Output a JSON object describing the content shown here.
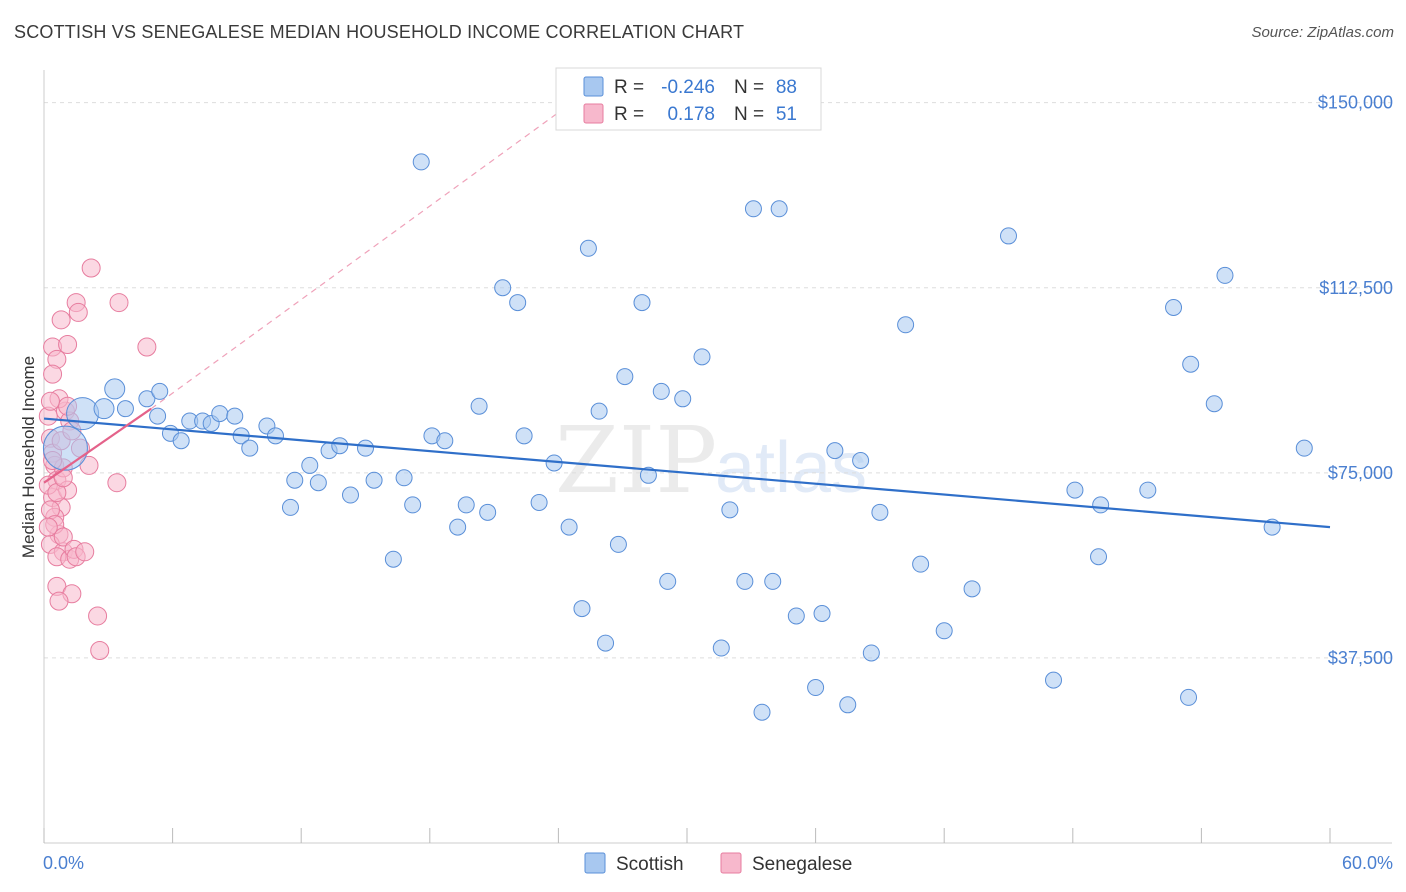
{
  "title": "SCOTTISH VS SENEGALESE MEDIAN HOUSEHOLD INCOME CORRELATION CHART",
  "source": "Source: ZipAtlas.com",
  "colors": {
    "scottish_fill": "#a8c8f0",
    "scottish_stroke": "#5a8fd8",
    "scottish_line": "#2f6fc9",
    "senegalese_fill": "#f7b8cc",
    "senegalese_stroke": "#e77d9f",
    "senegalese_line": "#e4628a",
    "axis_text": "#4a7fd0",
    "grid": "#dddddd"
  },
  "legend": {
    "row1": {
      "r_label": "R =",
      "r_value": "-0.246",
      "n_label": "N =",
      "n_value": "88"
    },
    "row2": {
      "r_label": "R =",
      "r_value": "0.178",
      "n_label": "N =",
      "n_value": "51"
    }
  },
  "bottom_legend": {
    "series1": "Scottish",
    "series2": "Senegalese"
  },
  "watermark": {
    "zip": "ZIP",
    "atlas": "atlas"
  },
  "chart_data": {
    "type": "scatter",
    "title": "SCOTTISH VS SENEGALESE MEDIAN HOUSEHOLD INCOME CORRELATION CHART",
    "xlabel": "",
    "ylabel": "Median Household Income",
    "xlim": [
      0,
      60
    ],
    "ylim": [
      0,
      155000
    ],
    "x_tick_labels": [
      "0.0%",
      "60.0%"
    ],
    "y_ticks": [
      37500,
      75000,
      112500,
      150000
    ],
    "y_tick_labels": [
      "$37,500",
      "$75,000",
      "$112,500",
      "$150,000"
    ],
    "legend_position": "top-center",
    "series": [
      {
        "name": "Scottish",
        "r": -0.246,
        "n": 88,
        "trend": {
          "x": [
            0,
            60
          ],
          "y": [
            86000,
            64000
          ]
        },
        "points": [
          [
            1.0,
            80000,
            22
          ],
          [
            1.8,
            87000,
            16
          ],
          [
            3.3,
            92000,
            10
          ],
          [
            2.8,
            88000,
            10
          ],
          [
            3.8,
            88000,
            8
          ],
          [
            4.8,
            90000,
            8
          ],
          [
            5.4,
            91500,
            8
          ],
          [
            5.3,
            86500,
            8
          ],
          [
            5.9,
            83000,
            8
          ],
          [
            6.4,
            81500,
            8
          ],
          [
            6.8,
            85500,
            8
          ],
          [
            7.4,
            85500,
            8
          ],
          [
            7.8,
            85000,
            8
          ],
          [
            8.2,
            87000,
            8
          ],
          [
            8.9,
            86500,
            8
          ],
          [
            9.2,
            82500,
            8
          ],
          [
            9.6,
            80000,
            8
          ],
          [
            10.4,
            84500,
            8
          ],
          [
            10.8,
            82500,
            8
          ],
          [
            11.5,
            68000,
            8
          ],
          [
            11.7,
            73500,
            8
          ],
          [
            12.4,
            76500,
            8
          ],
          [
            12.8,
            73000,
            8
          ],
          [
            13.3,
            79500,
            8
          ],
          [
            13.8,
            80500,
            8
          ],
          [
            14.3,
            70500,
            8
          ],
          [
            15.0,
            80000,
            8
          ],
          [
            15.4,
            73500,
            8
          ],
          [
            16.3,
            57500,
            8
          ],
          [
            16.8,
            74000,
            8
          ],
          [
            17.2,
            68500,
            8
          ],
          [
            17.6,
            138000,
            8
          ],
          [
            18.1,
            82500,
            8
          ],
          [
            18.7,
            81500,
            8
          ],
          [
            19.3,
            64000,
            8
          ],
          [
            19.7,
            68500,
            8
          ],
          [
            20.3,
            88500,
            8
          ],
          [
            20.7,
            67000,
            8
          ],
          [
            21.4,
            112500,
            8
          ],
          [
            22.1,
            109500,
            8
          ],
          [
            22.4,
            82500,
            8
          ],
          [
            23.1,
            69000,
            8
          ],
          [
            23.8,
            77000,
            8
          ],
          [
            24.5,
            64000,
            8
          ],
          [
            25.1,
            47500,
            8
          ],
          [
            25.4,
            120500,
            8
          ],
          [
            25.9,
            87500,
            8
          ],
          [
            26.2,
            40500,
            8
          ],
          [
            26.8,
            60500,
            8
          ],
          [
            27.1,
            94500,
            8
          ],
          [
            27.9,
            109500,
            8
          ],
          [
            28.2,
            74500,
            8
          ],
          [
            28.8,
            91500,
            8
          ],
          [
            29.1,
            53000,
            8
          ],
          [
            29.8,
            90000,
            8
          ],
          [
            30.7,
            98500,
            8
          ],
          [
            31.6,
            39500,
            8
          ],
          [
            32.0,
            67500,
            8
          ],
          [
            32.7,
            53000,
            8
          ],
          [
            33.1,
            128500,
            8
          ],
          [
            33.5,
            26500,
            8
          ],
          [
            34.0,
            53000,
            8
          ],
          [
            34.3,
            128500,
            8
          ],
          [
            35.1,
            46000,
            8
          ],
          [
            36.0,
            31500,
            8
          ],
          [
            36.3,
            46500,
            8
          ],
          [
            36.9,
            79500,
            8
          ],
          [
            37.5,
            28000,
            8
          ],
          [
            38.1,
            77500,
            8
          ],
          [
            38.6,
            38500,
            8
          ],
          [
            39.0,
            67000,
            8
          ],
          [
            40.2,
            105000,
            8
          ],
          [
            40.9,
            56500,
            8
          ],
          [
            42.0,
            43000,
            8
          ],
          [
            43.3,
            51500,
            8
          ],
          [
            45.0,
            123000,
            8
          ],
          [
            47.1,
            33000,
            8
          ],
          [
            48.1,
            71500,
            8
          ],
          [
            49.2,
            58000,
            8
          ],
          [
            49.3,
            68500,
            8
          ],
          [
            51.5,
            71500,
            8
          ],
          [
            52.7,
            108500,
            8
          ],
          [
            53.4,
            29500,
            8
          ],
          [
            53.5,
            97000,
            8
          ],
          [
            54.6,
            89000,
            8
          ],
          [
            55.1,
            115000,
            8
          ],
          [
            57.3,
            64000,
            8
          ],
          [
            58.8,
            80000,
            8
          ]
        ]
      },
      {
        "name": "Senegalese",
        "r": 0.178,
        "n": 51,
        "trend": {
          "x": [
            0,
            5
          ],
          "y": [
            73000,
            88000
          ]
        },
        "trend_extension": {
          "x": [
            5,
            24
          ],
          "y": [
            88000,
            148000
          ]
        },
        "points": [
          [
            0.2,
            86500,
            9
          ],
          [
            0.3,
            82000,
            9
          ],
          [
            0.4,
            79000,
            9
          ],
          [
            0.5,
            76500,
            9
          ],
          [
            0.6,
            73500,
            9
          ],
          [
            0.4,
            70000,
            9
          ],
          [
            0.8,
            68000,
            9
          ],
          [
            0.2,
            72500,
            9
          ],
          [
            0.5,
            66000,
            9
          ],
          [
            0.7,
            62500,
            9
          ],
          [
            0.3,
            60500,
            9
          ],
          [
            0.9,
            59000,
            9
          ],
          [
            0.6,
            58000,
            9
          ],
          [
            0.8,
            81500,
            9
          ],
          [
            1.0,
            87500,
            9
          ],
          [
            1.2,
            85500,
            9
          ],
          [
            0.7,
            90000,
            9
          ],
          [
            1.1,
            88500,
            9
          ],
          [
            1.3,
            83500,
            9
          ],
          [
            0.9,
            76000,
            9
          ],
          [
            1.1,
            71500,
            9
          ],
          [
            0.6,
            71000,
            9
          ],
          [
            0.4,
            77500,
            9
          ],
          [
            0.3,
            67500,
            9
          ],
          [
            0.5,
            64500,
            9
          ],
          [
            0.9,
            62000,
            9
          ],
          [
            1.2,
            57500,
            9
          ],
          [
            1.4,
            59500,
            9
          ],
          [
            1.5,
            58000,
            9
          ],
          [
            0.6,
            52000,
            9
          ],
          [
            1.3,
            50500,
            9
          ],
          [
            0.7,
            49000,
            9
          ],
          [
            2.5,
            46000,
            9
          ],
          [
            2.6,
            39000,
            9
          ],
          [
            0.4,
            100500,
            9
          ],
          [
            0.6,
            98000,
            9
          ],
          [
            0.8,
            106000,
            9
          ],
          [
            1.1,
            101000,
            9
          ],
          [
            1.5,
            109500,
            9
          ],
          [
            1.6,
            107500,
            9
          ],
          [
            2.2,
            116500,
            9
          ],
          [
            3.5,
            109500,
            9
          ],
          [
            4.8,
            100500,
            9
          ],
          [
            2.1,
            76500,
            9
          ],
          [
            3.4,
            73000,
            9
          ],
          [
            1.9,
            59000,
            9
          ],
          [
            0.2,
            64000,
            9
          ],
          [
            1.7,
            80000,
            9
          ],
          [
            0.9,
            74000,
            9
          ],
          [
            0.4,
            95000,
            9
          ],
          [
            0.3,
            89500,
            9
          ]
        ]
      }
    ]
  }
}
